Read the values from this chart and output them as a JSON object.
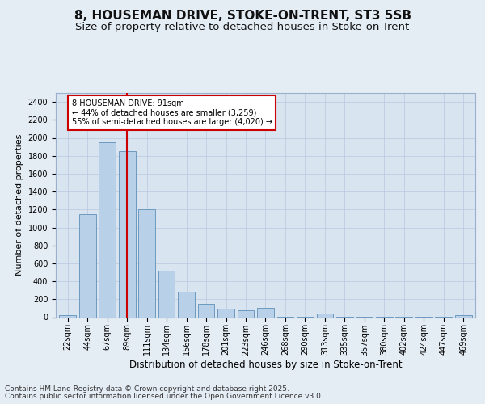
{
  "title_line1": "8, HOUSEMAN DRIVE, STOKE-ON-TRENT, ST3 5SB",
  "title_line2": "Size of property relative to detached houses in Stoke-on-Trent",
  "xlabel": "Distribution of detached houses by size in Stoke-on-Trent",
  "ylabel": "Number of detached properties",
  "categories": [
    "22sqm",
    "44sqm",
    "67sqm",
    "89sqm",
    "111sqm",
    "134sqm",
    "156sqm",
    "178sqm",
    "201sqm",
    "223sqm",
    "246sqm",
    "268sqm",
    "290sqm",
    "313sqm",
    "335sqm",
    "357sqm",
    "380sqm",
    "402sqm",
    "424sqm",
    "447sqm",
    "469sqm"
  ],
  "values": [
    25,
    1150,
    1950,
    1850,
    1200,
    520,
    280,
    145,
    95,
    75,
    105,
    5,
    5,
    40,
    5,
    5,
    5,
    5,
    5,
    5,
    25
  ],
  "bar_color": "#b8d0e8",
  "bar_edge_color": "#6090b8",
  "vline_x_index": 3,
  "vline_color": "#cc0000",
  "annotation_text": "8 HOUSEMAN DRIVE: 91sqm\n← 44% of detached houses are smaller (3,259)\n55% of semi-detached houses are larger (4,020) →",
  "annotation_box_facecolor": "#ffffff",
  "annotation_box_edgecolor": "#cc0000",
  "ylim": [
    0,
    2500
  ],
  "yticks": [
    0,
    200,
    400,
    600,
    800,
    1000,
    1200,
    1400,
    1600,
    1800,
    2000,
    2200,
    2400
  ],
  "background_color": "#e4ecf4",
  "plot_background_color": "#d8e4f0",
  "grid_color": "#b8c8dc",
  "footer_line1": "Contains HM Land Registry data © Crown copyright and database right 2025.",
  "footer_line2": "Contains public sector information licensed under the Open Government Licence v3.0.",
  "title_fontsize": 11,
  "subtitle_fontsize": 9.5,
  "ylabel_fontsize": 8,
  "xlabel_fontsize": 8.5,
  "tick_fontsize": 7,
  "annotation_fontsize": 7,
  "footer_fontsize": 6.5
}
